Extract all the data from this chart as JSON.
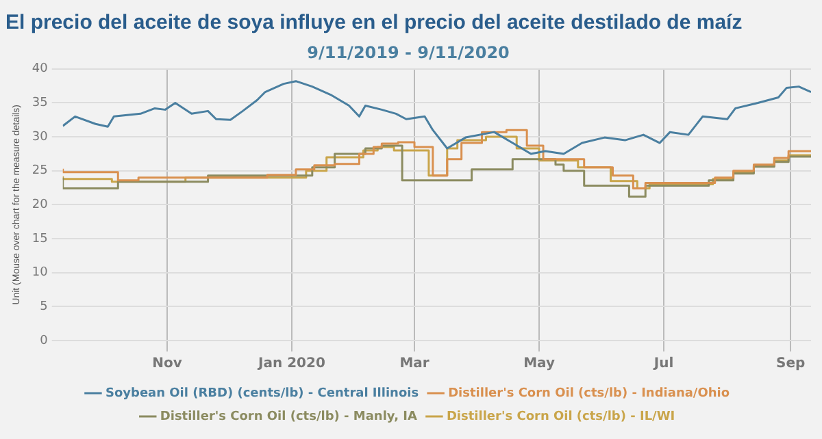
{
  "chart_data": {
    "type": "line",
    "title": "El precio del aceite de soya influye en el precio del aceite destilado de maíz",
    "subtitle": "9/11/2019 - 9/11/2020",
    "ylabel": "Unit (Mouse over chart for the measure details)",
    "xlim": [
      "2019-09-11",
      "2020-09-11"
    ],
    "xticks": [
      {
        "value": "2019-11-01",
        "label": "Nov"
      },
      {
        "value": "2020-01-01",
        "label": "Jan 2020"
      },
      {
        "value": "2020-03-01",
        "label": "Mar"
      },
      {
        "value": "2020-05-01",
        "label": "May"
      },
      {
        "value": "2020-07-01",
        "label": "Jul"
      },
      {
        "value": "2020-09-01",
        "label": "Sep"
      }
    ],
    "ylim": [
      0,
      40
    ],
    "yticks": [
      0,
      5,
      10,
      15,
      20,
      25,
      30,
      35,
      40
    ],
    "grid": true,
    "legend": "bottom",
    "marker": "none",
    "line_style": "solid",
    "series": [
      {
        "name": "Soybean Oil (RBD) (cents/lb) - Central Illinois",
        "color": "#4a7fa0",
        "x": [
          "2019-09-11",
          "2019-09-17",
          "2019-09-27",
          "2019-10-03",
          "2019-10-06",
          "2019-10-19",
          "2019-10-26",
          "2019-10-31",
          "2019-11-05",
          "2019-11-13",
          "2019-11-21",
          "2019-11-25",
          "2019-12-02",
          "2019-12-08",
          "2019-12-15",
          "2019-12-19",
          "2019-12-28",
          "2020-01-03",
          "2020-01-11",
          "2020-01-20",
          "2020-01-29",
          "2020-02-03",
          "2020-02-06",
          "2020-02-14",
          "2020-02-21",
          "2020-02-26",
          "2020-03-06",
          "2020-03-10",
          "2020-03-17",
          "2020-03-26",
          "2020-04-09",
          "2020-04-18",
          "2020-04-27",
          "2020-05-04",
          "2020-05-13",
          "2020-05-22",
          "2020-06-02",
          "2020-06-12",
          "2020-06-21",
          "2020-06-29",
          "2020-07-04",
          "2020-07-13",
          "2020-07-20",
          "2020-08-01",
          "2020-08-05",
          "2020-08-16",
          "2020-08-26",
          "2020-08-30",
          "2020-09-05",
          "2020-09-11"
        ],
        "values": [
          31.6,
          33.0,
          31.9,
          31.5,
          33.0,
          33.4,
          34.2,
          34.0,
          35.0,
          33.4,
          33.8,
          32.6,
          32.5,
          33.8,
          35.4,
          36.6,
          37.8,
          38.2,
          37.4,
          36.2,
          34.6,
          33.0,
          34.6,
          34.0,
          33.4,
          32.6,
          33.0,
          31.0,
          28.3,
          29.9,
          30.7,
          29.1,
          27.5,
          27.9,
          27.5,
          29.1,
          29.9,
          29.5,
          30.3,
          29.1,
          30.7,
          30.3,
          33.0,
          32.6,
          34.2,
          35.0,
          35.8,
          37.2,
          37.4,
          36.6
        ]
      },
      {
        "name": "Distiller's Corn Oil (cts/lb) - Indiana/Ohio",
        "type": "step",
        "color": "#d9904f",
        "x": [
          "2019-09-11",
          "2019-10-08",
          "2019-10-18",
          "2019-12-20",
          "2020-01-03",
          "2020-01-12",
          "2020-01-22",
          "2020-02-03",
          "2020-02-10",
          "2020-02-14",
          "2020-02-22",
          "2020-03-01",
          "2020-03-10",
          "2020-03-17",
          "2020-03-24",
          "2020-04-03",
          "2020-04-15",
          "2020-04-25",
          "2020-05-03",
          "2020-05-23",
          "2020-06-06",
          "2020-06-16",
          "2020-06-22",
          "2020-07-26",
          "2020-08-04",
          "2020-08-14",
          "2020-08-24",
          "2020-08-31",
          "2020-09-06",
          "2020-09-11"
        ],
        "values": [
          25.3,
          24.8,
          23.6,
          24.0,
          24.4,
          25.2,
          25.8,
          26.0,
          27.5,
          28.5,
          29.0,
          29.2,
          28.5,
          24.3,
          26.7,
          29.1,
          30.7,
          31.0,
          28.7,
          26.7,
          25.5,
          24.3,
          22.4,
          23.2,
          24.0,
          25.0,
          25.9,
          26.9,
          27.9,
          27.9
        ]
      },
      {
        "name": "Distiller's Corn Oil (cts/lb) - Manly, IA",
        "type": "step",
        "color": "#8b8b60",
        "x": [
          "2019-09-11",
          "2019-10-08",
          "2019-11-21",
          "2020-01-11",
          "2020-01-22",
          "2020-02-06",
          "2020-02-14",
          "2020-02-24",
          "2020-03-10",
          "2020-03-29",
          "2020-04-18",
          "2020-05-09",
          "2020-05-13",
          "2020-05-23",
          "2020-06-14",
          "2020-06-22",
          "2020-07-23",
          "2020-08-04",
          "2020-08-14",
          "2020-08-24",
          "2020-08-31",
          "2020-09-06",
          "2020-09-11"
        ],
        "values": [
          24.0,
          22.4,
          23.4,
          24.3,
          25.5,
          27.5,
          28.3,
          28.7,
          23.6,
          23.6,
          25.2,
          26.7,
          25.9,
          25.0,
          22.8,
          21.2,
          22.8,
          23.6,
          24.6,
          25.6,
          26.3,
          27.1,
          27.1
        ]
      },
      {
        "name": "Distiller's Corn Oil (cts/lb) - IL/WI",
        "type": "step",
        "color": "#c9a54a",
        "x": [
          "2019-09-11",
          "2019-10-05",
          "2019-11-10",
          "2020-01-08",
          "2020-01-18",
          "2020-02-05",
          "2020-02-12",
          "2020-02-20",
          "2020-03-08",
          "2020-03-17",
          "2020-03-22",
          "2020-04-05",
          "2020-04-20",
          "2020-05-01",
          "2020-05-20",
          "2020-06-05",
          "2020-06-18",
          "2020-06-24",
          "2020-07-25",
          "2020-08-04",
          "2020-08-14",
          "2020-08-24",
          "2020-08-31",
          "2020-09-06",
          "2020-09-11"
        ],
        "values": [
          24.2,
          23.8,
          23.4,
          24.0,
          25.0,
          27.0,
          28.0,
          28.5,
          28.0,
          24.3,
          28.3,
          29.5,
          30.0,
          28.3,
          26.5,
          25.5,
          23.5,
          22.4,
          23.0,
          23.8,
          24.8,
          25.7,
          26.5,
          27.3,
          27.3
        ]
      }
    ]
  }
}
